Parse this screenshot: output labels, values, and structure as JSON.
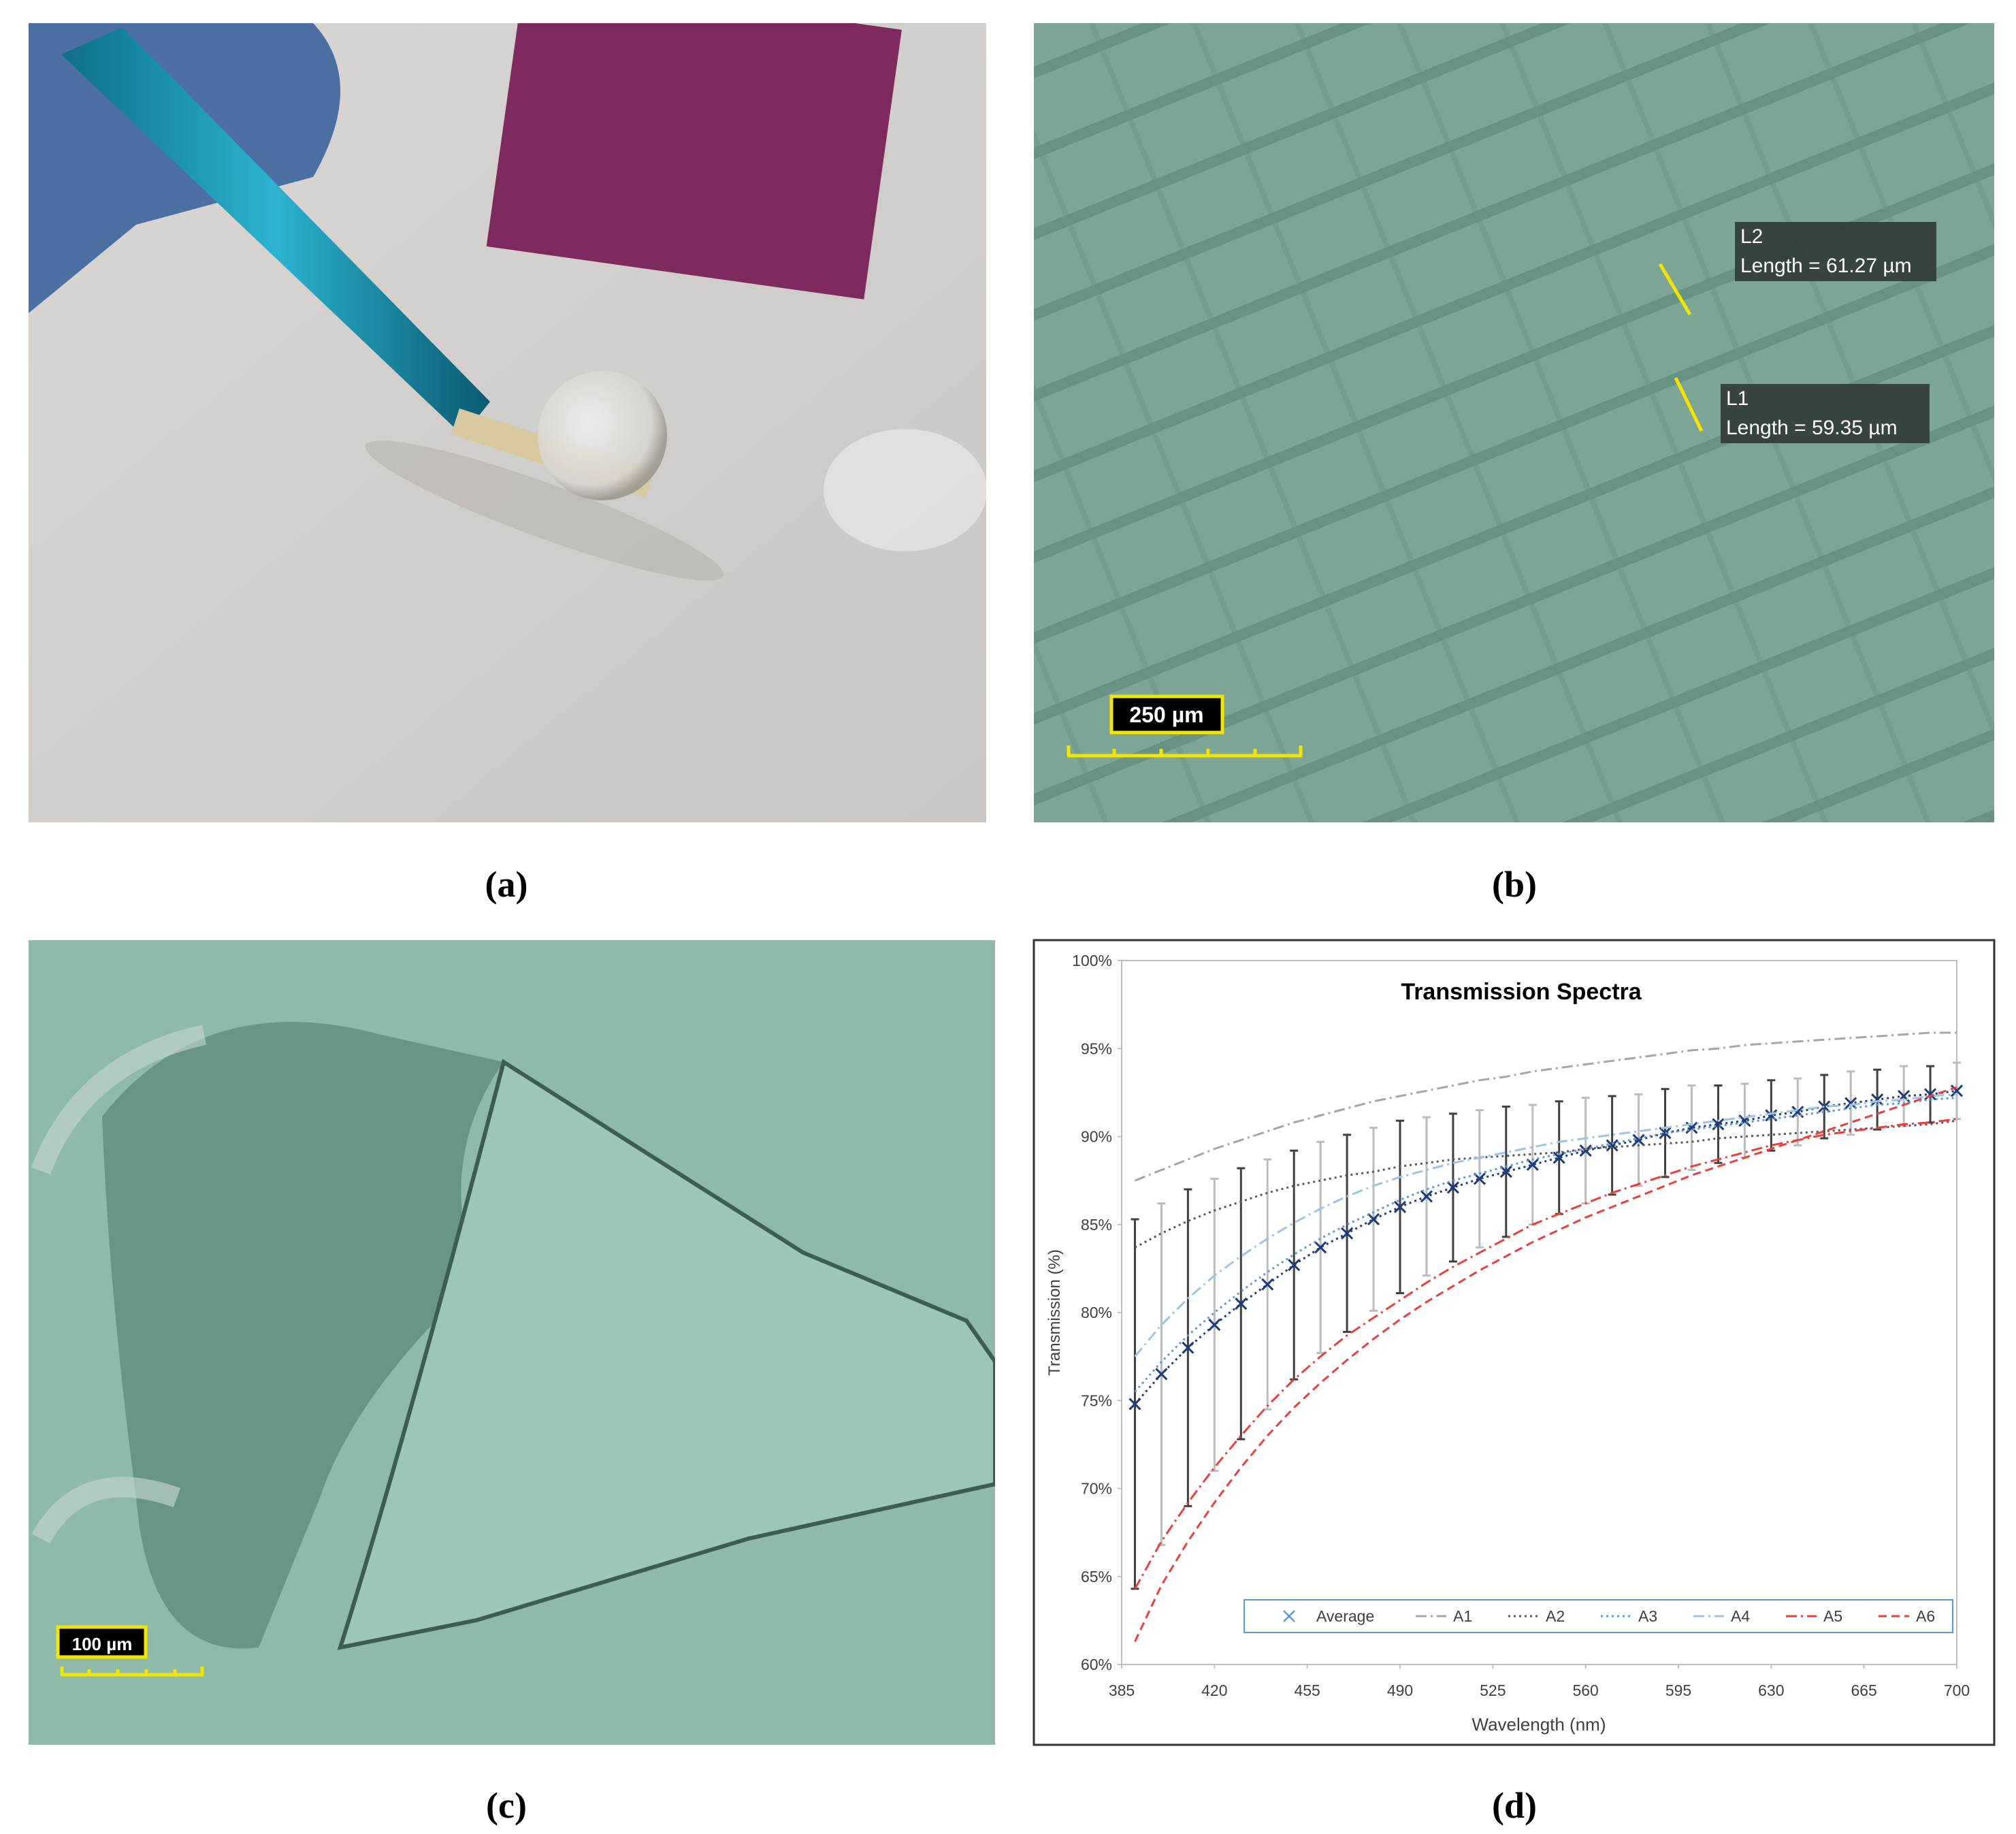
{
  "panels": [
    {
      "label": "(a)"
    },
    {
      "label": "(b)",
      "annotations": [
        {
          "name": "L2",
          "text": "Length = 61.27 µm"
        },
        {
          "name": "L1",
          "text": "Length = 59.35 µm"
        }
      ],
      "scale_bar": "250 µm"
    },
    {
      "label": "(c)",
      "scale_bar": "100 µm"
    },
    {
      "label": "(d)"
    }
  ],
  "chart_data": {
    "type": "line",
    "title": "Transmission Spectra",
    "x_label": "Wavelength (nm)",
    "y_label": "Transmission (%)",
    "x": [
      390,
      400,
      410,
      420,
      430,
      440,
      450,
      460,
      470,
      480,
      490,
      500,
      510,
      520,
      530,
      540,
      550,
      560,
      570,
      580,
      590,
      600,
      610,
      620,
      630,
      640,
      650,
      660,
      670,
      680,
      690,
      700
    ],
    "xlim": [
      385,
      700
    ],
    "xticks": [
      385,
      420,
      455,
      490,
      525,
      560,
      595,
      630,
      665,
      700
    ],
    "ylim": [
      60,
      100
    ],
    "yticks": [
      {
        "value": 60,
        "label": "60%"
      },
      {
        "value": 65,
        "label": "65%"
      },
      {
        "value": 70,
        "label": "70%"
      },
      {
        "value": 75,
        "label": "75%"
      },
      {
        "value": 80,
        "label": "80%"
      },
      {
        "value": 85,
        "label": "85%"
      },
      {
        "value": 90,
        "label": "90%"
      },
      {
        "value": 95,
        "label": "95%"
      },
      {
        "value": 100,
        "label": "100%"
      }
    ],
    "grid": false,
    "legend": "bottom",
    "series": [
      {
        "name": "Average",
        "color": "#1f3a78",
        "dash": "dot",
        "marker": "x",
        "values": [
          74.8,
          76.5,
          78.0,
          79.3,
          80.5,
          81.6,
          82.7,
          83.7,
          84.5,
          85.3,
          86.0,
          86.6,
          87.1,
          87.6,
          88.0,
          88.4,
          88.8,
          89.2,
          89.5,
          89.8,
          90.2,
          90.5,
          90.7,
          90.9,
          91.2,
          91.4,
          91.7,
          91.9,
          92.1,
          92.3,
          92.4,
          92.6
        ],
        "errors": [
          10.5,
          9.7,
          9.0,
          8.3,
          7.7,
          7.1,
          6.5,
          6.0,
          5.6,
          5.2,
          4.9,
          4.5,
          4.2,
          3.9,
          3.7,
          3.4,
          3.2,
          3.0,
          2.8,
          2.6,
          2.5,
          2.4,
          2.2,
          2.1,
          2.0,
          1.9,
          1.8,
          1.8,
          1.7,
          1.7,
          1.6,
          1.6
        ]
      },
      {
        "name": "A1",
        "color": "#a6a6a6",
        "dash": "dashdot",
        "values": [
          87.5,
          88.1,
          88.7,
          89.3,
          89.8,
          90.3,
          90.8,
          91.2,
          91.6,
          92.0,
          92.3,
          92.6,
          92.9,
          93.2,
          93.4,
          93.7,
          93.9,
          94.1,
          94.3,
          94.5,
          94.7,
          94.9,
          95.0,
          95.2,
          95.3,
          95.4,
          95.5,
          95.6,
          95.7,
          95.8,
          95.9,
          95.9
        ]
      },
      {
        "name": "A2",
        "color": "#595959",
        "dash": "dot",
        "values": [
          83.7,
          84.5,
          85.2,
          85.8,
          86.3,
          86.8,
          87.2,
          87.5,
          87.8,
          88.0,
          88.3,
          88.5,
          88.7,
          88.8,
          88.9,
          89.0,
          89.1,
          89.3,
          89.4,
          89.5,
          89.6,
          89.7,
          89.9,
          90.0,
          90.1,
          90.2,
          90.3,
          90.4,
          90.5,
          90.6,
          90.7,
          90.9
        ]
      },
      {
        "name": "A3",
        "color": "#5b9bd5",
        "dash": "dot",
        "values": [
          75.5,
          77.2,
          78.7,
          80.0,
          81.2,
          82.3,
          83.3,
          84.2,
          85.0,
          85.7,
          86.4,
          87.0,
          87.5,
          87.9,
          88.3,
          88.7,
          89.0,
          89.3,
          89.6,
          89.9,
          90.2,
          90.4,
          90.6,
          90.8,
          91.0,
          91.2,
          91.4,
          91.6,
          91.8,
          91.9,
          92.1,
          92.2
        ]
      },
      {
        "name": "A4",
        "color": "#9dc3e6",
        "dash": "dashdot",
        "values": [
          77.5,
          79.3,
          80.8,
          82.1,
          83.2,
          84.2,
          85.1,
          85.9,
          86.6,
          87.2,
          87.7,
          88.1,
          88.5,
          88.8,
          89.1,
          89.4,
          89.7,
          89.9,
          90.1,
          90.3,
          90.5,
          90.7,
          90.9,
          91.1,
          91.3,
          91.5,
          91.7,
          91.8,
          92.0,
          92.1,
          92.3,
          92.4
        ]
      },
      {
        "name": "A5",
        "color": "#e8413c",
        "dash": "dashdot",
        "values": [
          64.3,
          67.0,
          69.2,
          71.2,
          73.0,
          74.7,
          76.2,
          77.5,
          78.7,
          79.7,
          80.7,
          81.7,
          82.6,
          83.4,
          84.2,
          85.0,
          85.6,
          86.2,
          86.8,
          87.3,
          87.8,
          88.3,
          88.7,
          89.1,
          89.5,
          89.8,
          90.1,
          90.3,
          90.5,
          90.7,
          90.8,
          91.0
        ]
      },
      {
        "name": "A6",
        "color": "#e8413c",
        "dash": "dash",
        "values": [
          61.3,
          64.5,
          67.0,
          69.2,
          71.2,
          73.0,
          74.6,
          76.0,
          77.3,
          78.5,
          79.6,
          80.6,
          81.5,
          82.4,
          83.2,
          84.0,
          84.7,
          85.4,
          86.0,
          86.6,
          87.2,
          87.8,
          88.3,
          88.8,
          89.3,
          89.8,
          90.3,
          90.8,
          91.3,
          91.8,
          92.3,
          92.8
        ]
      }
    ]
  }
}
